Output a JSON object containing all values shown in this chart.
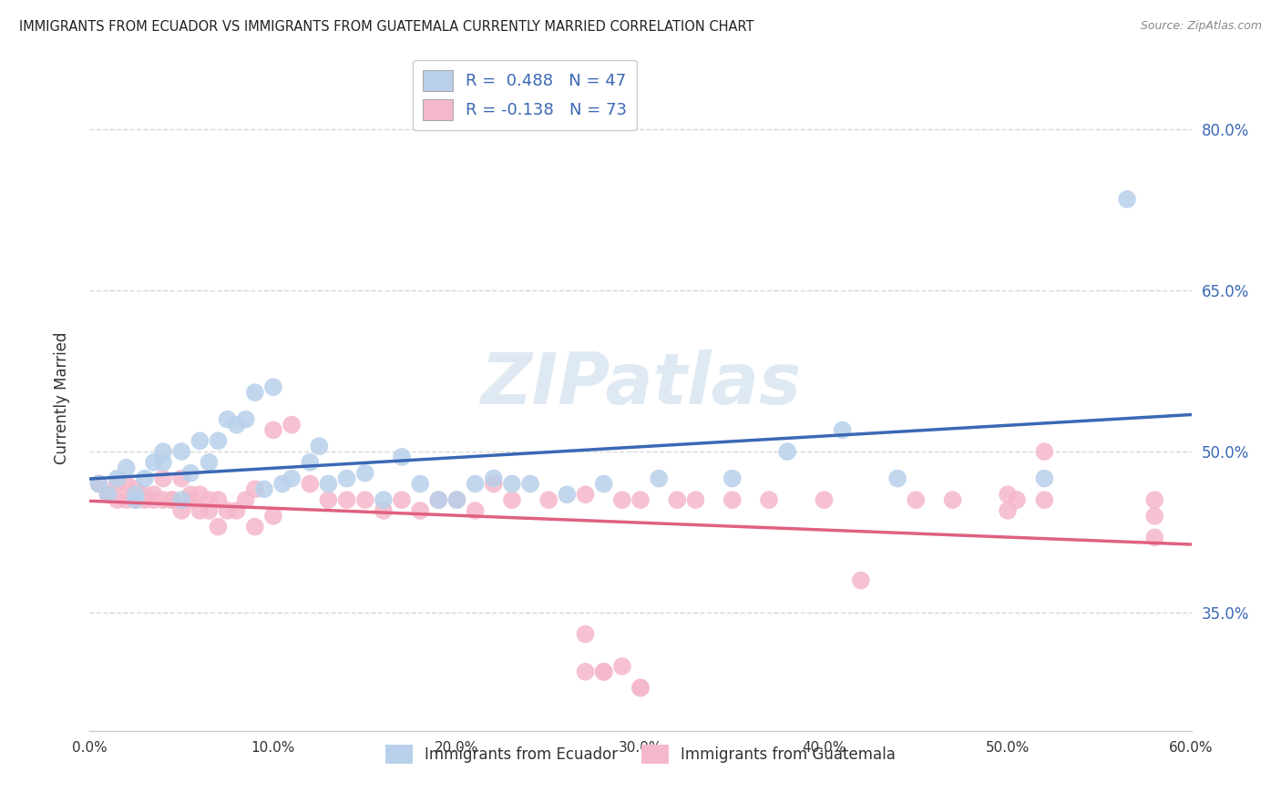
{
  "title": "IMMIGRANTS FROM ECUADOR VS IMMIGRANTS FROM GUATEMALA CURRENTLY MARRIED CORRELATION CHART",
  "source": "Source: ZipAtlas.com",
  "ylabel": "Currently Married",
  "xlim": [
    0.0,
    0.6
  ],
  "ylim": [
    0.24,
    0.86
  ],
  "y_tick_vals": [
    0.35,
    0.5,
    0.65,
    0.8
  ],
  "x_tick_vals": [
    0.0,
    0.1,
    0.2,
    0.3,
    0.4,
    0.5,
    0.6
  ],
  "ecuador_color": "#b8d0ea",
  "guatemala_color": "#f5b8cb",
  "ecuador_line_color": "#3b68b5",
  "guatemala_line_color": "#e06080",
  "ecuador_R": 0.488,
  "ecuador_N": 47,
  "guatemala_R": -0.138,
  "guatemala_N": 73,
  "background_color": "#ffffff",
  "grid_color": "#d8d8d8",
  "watermark": "ZIPatlas",
  "ecuador_scatter_x": [
    0.005,
    0.01,
    0.015,
    0.02,
    0.025,
    0.025,
    0.03,
    0.035,
    0.04,
    0.04,
    0.05,
    0.05,
    0.055,
    0.06,
    0.065,
    0.07,
    0.075,
    0.08,
    0.085,
    0.09,
    0.095,
    0.1,
    0.105,
    0.11,
    0.12,
    0.125,
    0.13,
    0.14,
    0.15,
    0.16,
    0.17,
    0.18,
    0.19,
    0.2,
    0.21,
    0.22,
    0.23,
    0.24,
    0.26,
    0.28,
    0.31,
    0.35,
    0.38,
    0.41,
    0.44,
    0.52,
    0.565
  ],
  "ecuador_scatter_y": [
    0.47,
    0.46,
    0.475,
    0.485,
    0.455,
    0.46,
    0.475,
    0.49,
    0.49,
    0.5,
    0.5,
    0.455,
    0.48,
    0.51,
    0.49,
    0.51,
    0.53,
    0.525,
    0.53,
    0.555,
    0.465,
    0.56,
    0.47,
    0.475,
    0.49,
    0.505,
    0.47,
    0.475,
    0.48,
    0.455,
    0.495,
    0.47,
    0.455,
    0.455,
    0.47,
    0.475,
    0.47,
    0.47,
    0.46,
    0.47,
    0.475,
    0.475,
    0.5,
    0.52,
    0.475,
    0.475,
    0.735
  ],
  "guatemala_scatter_x": [
    0.005,
    0.01,
    0.015,
    0.015,
    0.02,
    0.02,
    0.025,
    0.025,
    0.03,
    0.03,
    0.035,
    0.035,
    0.04,
    0.04,
    0.045,
    0.045,
    0.05,
    0.05,
    0.055,
    0.055,
    0.06,
    0.06,
    0.065,
    0.065,
    0.07,
    0.07,
    0.075,
    0.08,
    0.085,
    0.09,
    0.09,
    0.1,
    0.1,
    0.11,
    0.12,
    0.13,
    0.14,
    0.15,
    0.16,
    0.17,
    0.18,
    0.19,
    0.2,
    0.21,
    0.22,
    0.23,
    0.25,
    0.27,
    0.29,
    0.3,
    0.32,
    0.33,
    0.35,
    0.37,
    0.4,
    0.42,
    0.45,
    0.47,
    0.5,
    0.505,
    0.52,
    0.5,
    0.52,
    0.27,
    0.27,
    0.28,
    0.28,
    0.29,
    0.3,
    0.3,
    0.58,
    0.58,
    0.58
  ],
  "guatemala_scatter_y": [
    0.47,
    0.46,
    0.47,
    0.455,
    0.455,
    0.47,
    0.465,
    0.455,
    0.455,
    0.46,
    0.455,
    0.46,
    0.455,
    0.475,
    0.455,
    0.455,
    0.475,
    0.445,
    0.455,
    0.46,
    0.46,
    0.445,
    0.445,
    0.455,
    0.455,
    0.43,
    0.445,
    0.445,
    0.455,
    0.43,
    0.465,
    0.44,
    0.52,
    0.525,
    0.47,
    0.455,
    0.455,
    0.455,
    0.445,
    0.455,
    0.445,
    0.455,
    0.455,
    0.445,
    0.47,
    0.455,
    0.455,
    0.46,
    0.455,
    0.455,
    0.455,
    0.455,
    0.455,
    0.455,
    0.455,
    0.38,
    0.455,
    0.455,
    0.445,
    0.455,
    0.5,
    0.46,
    0.455,
    0.33,
    0.295,
    0.295,
    0.295,
    0.3,
    0.28,
    0.28,
    0.44,
    0.42,
    0.455
  ]
}
